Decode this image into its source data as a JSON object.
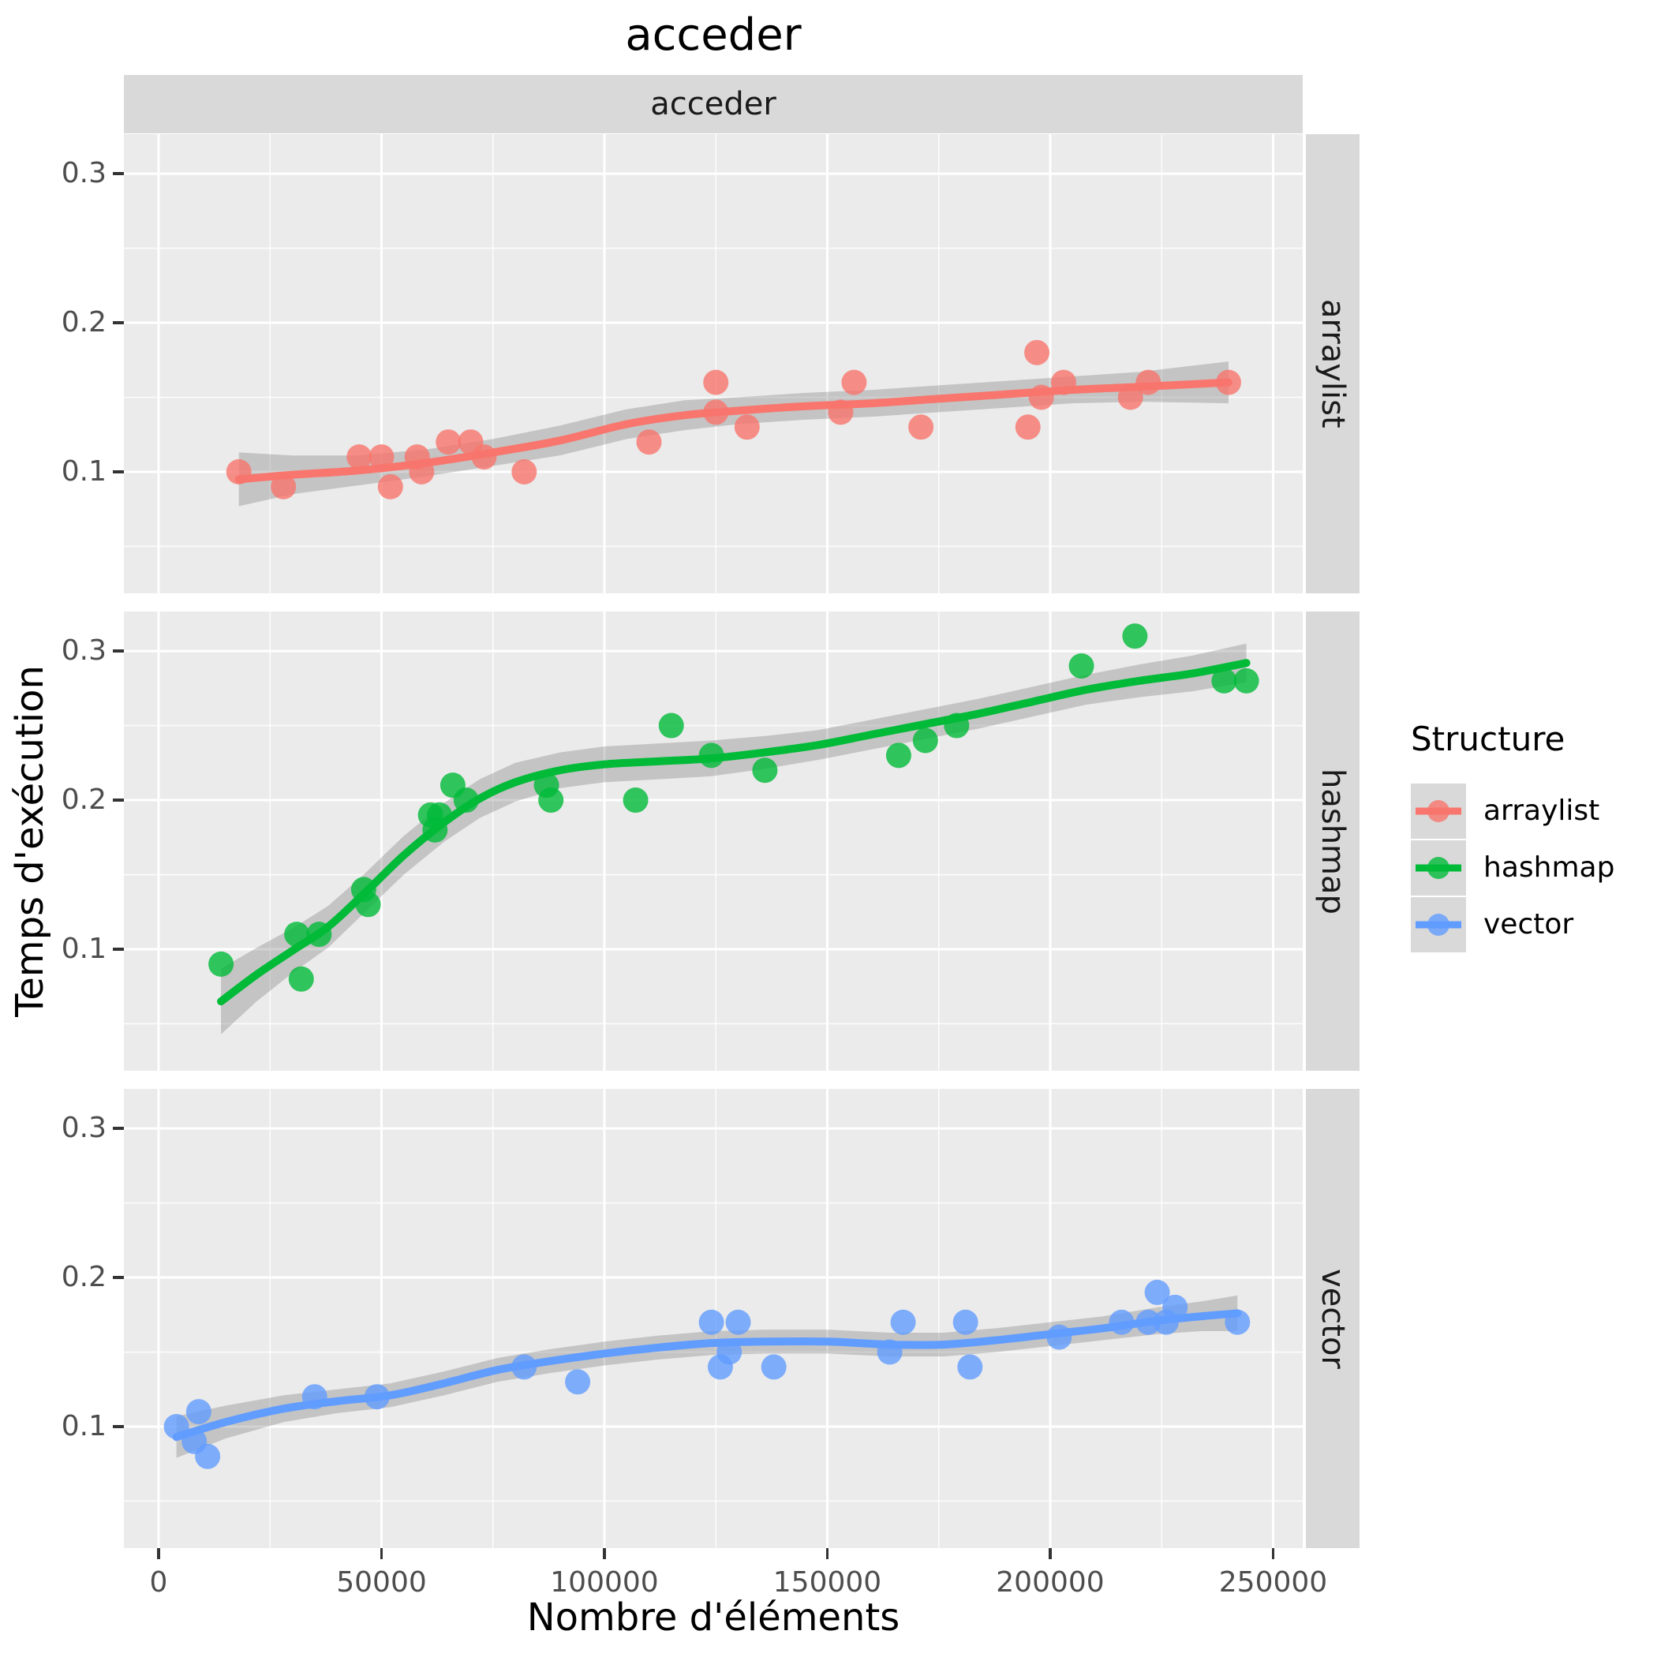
{
  "title": "acceder",
  "facet_strip_top": "acceder",
  "x_axis": {
    "label": "Nombre d'éléments",
    "ticks": [
      "0",
      "50000",
      "100000",
      "150000",
      "200000",
      "250000"
    ],
    "tick_values": [
      0,
      50000,
      100000,
      150000,
      200000,
      250000
    ]
  },
  "y_axis": {
    "label": "Temps d'exécution",
    "ticks": [
      "0.3",
      "0.2",
      "0.1"
    ],
    "tick_values": [
      0.3,
      0.2,
      0.1
    ]
  },
  "legend": {
    "title": "Structure",
    "items": [
      {
        "label": "arraylist",
        "color": "#F8766D"
      },
      {
        "label": "hashmap",
        "color": "#00BA38"
      },
      {
        "label": "vector",
        "color": "#619CFF"
      }
    ]
  },
  "colors": {
    "panel_bg": "#EBEBEB",
    "strip_bg": "#D9D9D9",
    "grid_major": "#FFFFFF",
    "grid_minor": "#FFFFFF",
    "ribbon": "#737373",
    "tick": "#333333",
    "tick_label": "#4D4D4D"
  },
  "chart_data": {
    "type": "scatter",
    "title": "acceder",
    "xlabel": "Nombre d'éléments",
    "ylabel": "Temps d'exécution",
    "xlim": [
      -7788,
      256637
    ],
    "ylim": [
      0.0185,
      0.3265
    ],
    "x_major_ticks": [
      0,
      50000,
      100000,
      150000,
      200000,
      250000
    ],
    "x_minor_ticks": [
      25000,
      75000,
      125000,
      175000,
      225000
    ],
    "y_major_ticks": [
      0.1,
      0.2,
      0.3
    ],
    "y_minor_ticks": [
      0.05,
      0.15,
      0.25
    ],
    "grid": true,
    "legend_position": "right",
    "facets": [
      {
        "name": "arraylist",
        "color": "#F8766D",
        "points": [
          [
            18000,
            0.1
          ],
          [
            28000,
            0.09
          ],
          [
            45000,
            0.11
          ],
          [
            50000,
            0.11
          ],
          [
            52000,
            0.09
          ],
          [
            58000,
            0.11
          ],
          [
            59000,
            0.1
          ],
          [
            65000,
            0.12
          ],
          [
            70000,
            0.12
          ],
          [
            73000,
            0.11
          ],
          [
            82000,
            0.1
          ],
          [
            110000,
            0.12
          ],
          [
            125000,
            0.16
          ],
          [
            125000,
            0.14
          ],
          [
            132000,
            0.13
          ],
          [
            153000,
            0.14
          ],
          [
            156000,
            0.16
          ],
          [
            171000,
            0.13
          ],
          [
            195000,
            0.13
          ],
          [
            197000,
            0.18
          ],
          [
            198000,
            0.15
          ],
          [
            203000,
            0.16
          ],
          [
            218000,
            0.15
          ],
          [
            222000,
            0.16
          ],
          [
            240000,
            0.16
          ]
        ],
        "trend": [
          [
            18000,
            0.095,
            0.018
          ],
          [
            30000,
            0.098,
            0.013
          ],
          [
            45000,
            0.101,
            0.01
          ],
          [
            60000,
            0.106,
            0.009
          ],
          [
            75000,
            0.113,
            0.009
          ],
          [
            90000,
            0.121,
            0.01
          ],
          [
            105000,
            0.132,
            0.01
          ],
          [
            118000,
            0.138,
            0.01
          ],
          [
            130000,
            0.141,
            0.009
          ],
          [
            145000,
            0.144,
            0.009
          ],
          [
            160000,
            0.146,
            0.009
          ],
          [
            175000,
            0.149,
            0.009
          ],
          [
            190000,
            0.152,
            0.009
          ],
          [
            205000,
            0.155,
            0.009
          ],
          [
            220000,
            0.157,
            0.01
          ],
          [
            240000,
            0.16,
            0.014
          ]
        ]
      },
      {
        "name": "hashmap",
        "color": "#00BA38",
        "points": [
          [
            14000,
            0.09
          ],
          [
            31000,
            0.11
          ],
          [
            32000,
            0.08
          ],
          [
            36000,
            0.11
          ],
          [
            46000,
            0.14
          ],
          [
            47000,
            0.13
          ],
          [
            61000,
            0.19
          ],
          [
            62000,
            0.18
          ],
          [
            63000,
            0.19
          ],
          [
            66000,
            0.21
          ],
          [
            69000,
            0.2
          ],
          [
            87000,
            0.21
          ],
          [
            88000,
            0.2
          ],
          [
            107000,
            0.2
          ],
          [
            115000,
            0.25
          ],
          [
            124000,
            0.23
          ],
          [
            136000,
            0.22
          ],
          [
            166000,
            0.23
          ],
          [
            172000,
            0.24
          ],
          [
            179000,
            0.25
          ],
          [
            207000,
            0.29
          ],
          [
            219000,
            0.31
          ],
          [
            239000,
            0.28
          ],
          [
            244000,
            0.28
          ]
        ],
        "trend": [
          [
            14000,
            0.065,
            0.022
          ],
          [
            22000,
            0.083,
            0.018
          ],
          [
            30000,
            0.099,
            0.015
          ],
          [
            38000,
            0.115,
            0.014
          ],
          [
            46000,
            0.137,
            0.013
          ],
          [
            55000,
            0.163,
            0.013
          ],
          [
            64000,
            0.185,
            0.013
          ],
          [
            72000,
            0.201,
            0.013
          ],
          [
            80000,
            0.212,
            0.013
          ],
          [
            90000,
            0.22,
            0.012
          ],
          [
            100000,
            0.224,
            0.012
          ],
          [
            112000,
            0.226,
            0.012
          ],
          [
            124000,
            0.228,
            0.012
          ],
          [
            136000,
            0.232,
            0.011
          ],
          [
            148000,
            0.237,
            0.01
          ],
          [
            160000,
            0.244,
            0.01
          ],
          [
            172000,
            0.251,
            0.01
          ],
          [
            184000,
            0.258,
            0.01
          ],
          [
            196000,
            0.266,
            0.01
          ],
          [
            208000,
            0.274,
            0.01
          ],
          [
            220000,
            0.28,
            0.011
          ],
          [
            232000,
            0.285,
            0.012
          ],
          [
            244000,
            0.292,
            0.013
          ]
        ]
      },
      {
        "name": "vector",
        "color": "#619CFF",
        "points": [
          [
            4000,
            0.1
          ],
          [
            8000,
            0.09
          ],
          [
            9000,
            0.11
          ],
          [
            11000,
            0.08
          ],
          [
            35000,
            0.12
          ],
          [
            49000,
            0.12
          ],
          [
            82000,
            0.14
          ],
          [
            94000,
            0.13
          ],
          [
            124000,
            0.17
          ],
          [
            126000,
            0.14
          ],
          [
            128000,
            0.15
          ],
          [
            130000,
            0.17
          ],
          [
            138000,
            0.14
          ],
          [
            164000,
            0.15
          ],
          [
            167000,
            0.17
          ],
          [
            181000,
            0.17
          ],
          [
            182000,
            0.14
          ],
          [
            202000,
            0.16
          ],
          [
            216000,
            0.17
          ],
          [
            222000,
            0.17
          ],
          [
            224000,
            0.19
          ],
          [
            226000,
            0.17
          ],
          [
            228000,
            0.18
          ],
          [
            242000,
            0.17
          ]
        ],
        "trend": [
          [
            4000,
            0.093,
            0.014
          ],
          [
            15000,
            0.103,
            0.011
          ],
          [
            28000,
            0.112,
            0.009
          ],
          [
            40000,
            0.117,
            0.008
          ],
          [
            52000,
            0.121,
            0.008
          ],
          [
            64000,
            0.129,
            0.008
          ],
          [
            76000,
            0.138,
            0.008
          ],
          [
            88000,
            0.144,
            0.008
          ],
          [
            100000,
            0.149,
            0.008
          ],
          [
            112000,
            0.153,
            0.008
          ],
          [
            124000,
            0.156,
            0.008
          ],
          [
            136000,
            0.157,
            0.008
          ],
          [
            150000,
            0.157,
            0.008
          ],
          [
            164000,
            0.155,
            0.008
          ],
          [
            176000,
            0.155,
            0.008
          ],
          [
            188000,
            0.158,
            0.008
          ],
          [
            200000,
            0.162,
            0.008
          ],
          [
            212000,
            0.166,
            0.008
          ],
          [
            224000,
            0.171,
            0.009
          ],
          [
            234000,
            0.174,
            0.01
          ],
          [
            242000,
            0.176,
            0.012
          ]
        ]
      }
    ]
  }
}
